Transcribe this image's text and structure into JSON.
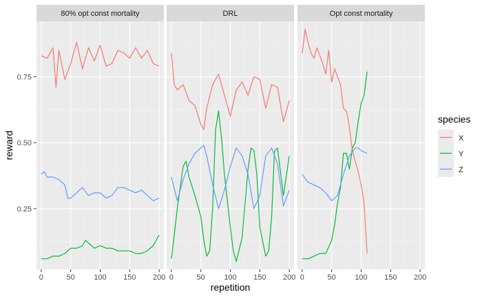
{
  "chart_data": {
    "type": "line",
    "facet_by": "strategy",
    "panels": [
      {
        "strip": "80% opt const mortality",
        "series": [
          {
            "name": "X",
            "x": [
              0,
              10,
              20,
              25,
              30,
              40,
              50,
              60,
              70,
              80,
              90,
              100,
              110,
              120,
              130,
              140,
              150,
              160,
              170,
              180,
              190,
              200
            ],
            "y": [
              0.83,
              0.82,
              0.86,
              0.71,
              0.85,
              0.74,
              0.8,
              0.88,
              0.78,
              0.86,
              0.81,
              0.87,
              0.79,
              0.8,
              0.85,
              0.84,
              0.82,
              0.86,
              0.82,
              0.85,
              0.8,
              0.79
            ]
          },
          {
            "name": "Y",
            "x": [
              0,
              10,
              20,
              30,
              40,
              50,
              60,
              70,
              75,
              80,
              90,
              100,
              110,
              120,
              130,
              140,
              150,
              160,
              170,
              180,
              190,
              200
            ],
            "y": [
              0.06,
              0.06,
              0.07,
              0.07,
              0.08,
              0.1,
              0.1,
              0.11,
              0.13,
              0.12,
              0.1,
              0.11,
              0.1,
              0.1,
              0.09,
              0.09,
              0.09,
              0.08,
              0.08,
              0.09,
              0.11,
              0.15
            ]
          },
          {
            "name": "Z",
            "x": [
              0,
              5,
              10,
              20,
              30,
              40,
              45,
              50,
              60,
              70,
              80,
              90,
              100,
              110,
              120,
              130,
              140,
              150,
              160,
              170,
              180,
              190,
              200
            ],
            "y": [
              0.38,
              0.39,
              0.37,
              0.37,
              0.36,
              0.34,
              0.29,
              0.29,
              0.31,
              0.33,
              0.3,
              0.31,
              0.31,
              0.29,
              0.3,
              0.33,
              0.33,
              0.32,
              0.31,
              0.32,
              0.3,
              0.28,
              0.29
            ]
          }
        ]
      },
      {
        "strip": "DRL",
        "series": [
          {
            "name": "X",
            "x": [
              0,
              5,
              10,
              20,
              30,
              40,
              50,
              55,
              60,
              70,
              80,
              90,
              100,
              110,
              120,
              130,
              140,
              150,
              160,
              170,
              180,
              190,
              200
            ],
            "y": [
              0.84,
              0.72,
              0.7,
              0.72,
              0.66,
              0.64,
              0.57,
              0.55,
              0.63,
              0.72,
              0.76,
              0.68,
              0.6,
              0.7,
              0.73,
              0.68,
              0.75,
              0.74,
              0.63,
              0.72,
              0.71,
              0.58,
              0.66
            ]
          },
          {
            "name": "Y",
            "x": [
              0,
              5,
              10,
              20,
              25,
              30,
              40,
              50,
              55,
              60,
              65,
              70,
              75,
              80,
              85,
              90,
              100,
              105,
              110,
              120,
              130,
              135,
              140,
              145,
              150,
              160,
              165,
              170,
              175,
              180,
              190,
              200
            ],
            "y": [
              0.06,
              0.15,
              0.25,
              0.41,
              0.43,
              0.37,
              0.3,
              0.22,
              0.13,
              0.07,
              0.09,
              0.25,
              0.55,
              0.62,
              0.52,
              0.38,
              0.18,
              0.09,
              0.05,
              0.14,
              0.4,
              0.48,
              0.47,
              0.38,
              0.18,
              0.07,
              0.09,
              0.22,
              0.47,
              0.48,
              0.3,
              0.45
            ]
          },
          {
            "name": "Z",
            "x": [
              0,
              10,
              20,
              30,
              40,
              50,
              55,
              60,
              70,
              80,
              90,
              100,
              110,
              120,
              130,
              140,
              150,
              160,
              170,
              180,
              190,
              200
            ],
            "y": [
              0.37,
              0.28,
              0.36,
              0.42,
              0.46,
              0.48,
              0.49,
              0.45,
              0.34,
              0.25,
              0.32,
              0.41,
              0.48,
              0.45,
              0.38,
              0.25,
              0.3,
              0.45,
              0.48,
              0.42,
              0.26,
              0.32
            ]
          }
        ]
      },
      {
        "strip": "Opt const mortality",
        "series": [
          {
            "name": "X",
            "x": [
              0,
              5,
              10,
              15,
              20,
              25,
              30,
              35,
              40,
              45,
              50,
              55,
              60,
              65,
              70,
              75,
              80,
              85,
              90,
              95,
              100,
              105,
              110
            ],
            "y": [
              0.84,
              0.93,
              0.88,
              0.84,
              0.82,
              0.86,
              0.83,
              0.8,
              0.76,
              0.85,
              0.73,
              0.78,
              0.75,
              0.72,
              0.63,
              0.62,
              0.56,
              0.47,
              0.43,
              0.39,
              0.34,
              0.27,
              0.08
            ]
          },
          {
            "name": "Y",
            "x": [
              0,
              10,
              20,
              30,
              40,
              50,
              55,
              60,
              65,
              70,
              75,
              80,
              85,
              90,
              95,
              100,
              105,
              110
            ],
            "y": [
              0.06,
              0.06,
              0.07,
              0.08,
              0.08,
              0.13,
              0.19,
              0.27,
              0.33,
              0.46,
              0.46,
              0.4,
              0.48,
              0.5,
              0.58,
              0.65,
              0.68,
              0.77
            ]
          },
          {
            "name": "Z",
            "x": [
              0,
              10,
              20,
              30,
              40,
              50,
              60,
              70,
              80,
              90,
              95,
              100,
              110
            ],
            "y": [
              0.38,
              0.35,
              0.34,
              0.33,
              0.31,
              0.28,
              0.3,
              0.38,
              0.45,
              0.48,
              0.48,
              0.47,
              0.46
            ]
          }
        ]
      }
    ],
    "xlabel": "repetition",
    "ylabel": "reward",
    "xlim": [
      -8,
      208
    ],
    "ylim": [
      0.02,
      0.96
    ],
    "xticks": [
      0,
      50,
      100,
      150,
      200
    ],
    "yticks": [
      0.25,
      0.5,
      0.75
    ],
    "ytick_labels": [
      "0.25",
      "0.50",
      "0.75"
    ],
    "legend": {
      "title": "species",
      "entries": [
        "X",
        "Y",
        "Z"
      ],
      "placement": "right"
    },
    "colors": {
      "X": "#F8766D",
      "Y": "#00BA38",
      "Z": "#619CFF",
      "panel_bg": "#EBEBEB",
      "strip_bg": "#D9D9D9",
      "grid_major": "#FFFFFF"
    },
    "grid": true
  }
}
